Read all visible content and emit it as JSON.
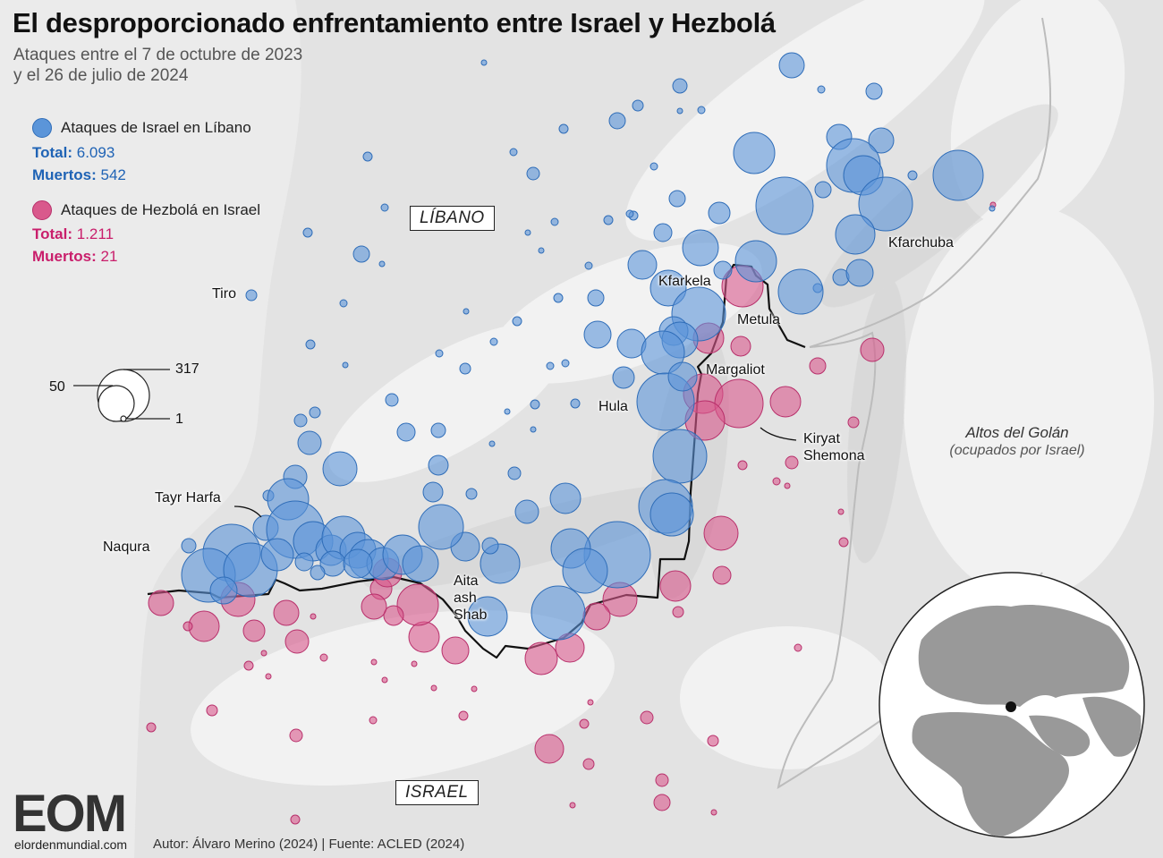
{
  "title": "El desproporcionado enfrentamiento entre Israel y Hezbolá",
  "subtitle_line1": "Ataques entre el 7 de octubre de 2023",
  "subtitle_line2": "y el 26 de julio de 2024",
  "legend": {
    "israel": {
      "label": "Ataques de Israel en Líbano",
      "total_label": "Total:",
      "total_value": "6.093",
      "deaths_label": "Muertos:",
      "deaths_value": "542",
      "color": "#5b95d9"
    },
    "hezbola": {
      "label": "Ataques de Hezbolá en Israel",
      "total_label": "Total:",
      "total_value": "1.211",
      "deaths_label": "Muertos:",
      "deaths_value": "21",
      "color": "#d9598c"
    }
  },
  "size_legend": {
    "max": "317",
    "mid": "50",
    "min": "1"
  },
  "countries": {
    "lebanon": "LÍBANO",
    "israel": "ISRAEL"
  },
  "places": {
    "tiro": "Tiro",
    "tayr_harfa": "Tayr Harfa",
    "naqura": "Naqura",
    "aita_1": "Aita",
    "aita_2": "ash",
    "aita_3": "Shab",
    "hula": "Hula",
    "kfarkela": "Kfarkela",
    "metula": "Metula",
    "margaliot": "Margaliot",
    "kiryat_1": "Kiryat",
    "kiryat_2": "Shemona",
    "kfarchuba": "Kfarchuba"
  },
  "golan": {
    "line1": "Altos del Golán",
    "line2": "(ocupados por Israel)"
  },
  "logo": {
    "mark": "EOM",
    "url": "elordenmundial.com"
  },
  "credit": "Autor: Álvaro Merino (2024) | Fuente: ACLED (2024)"
}
